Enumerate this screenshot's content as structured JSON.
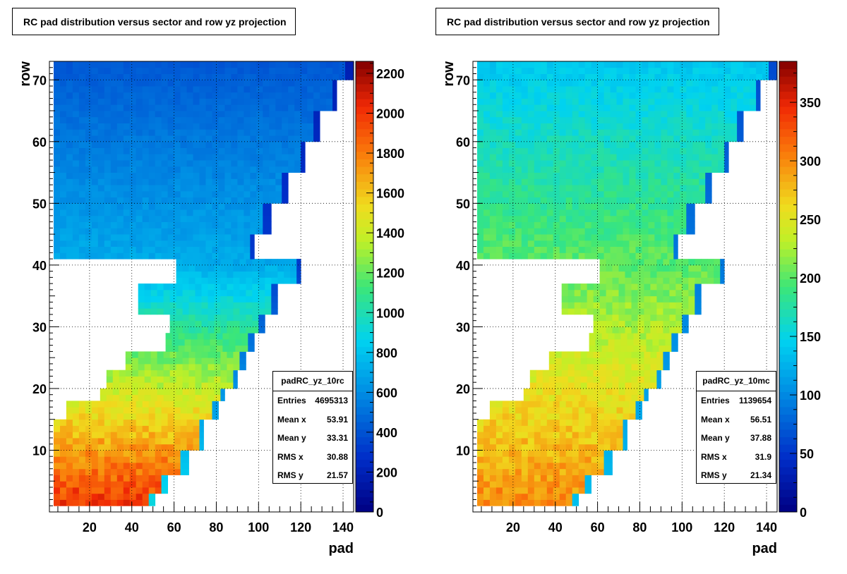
{
  "chart_data": [
    {
      "type": "heatmap",
      "title": "RC pad distribution versus sector and row yz projection",
      "xlabel": "pad",
      "ylabel": "row",
      "xlim": [
        1,
        145
      ],
      "ylim": [
        0,
        73
      ],
      "xticks": [
        20,
        40,
        60,
        80,
        100,
        120,
        140
      ],
      "yticks": [
        10,
        20,
        30,
        40,
        50,
        60,
        70
      ],
      "zlim": [
        0,
        2260
      ],
      "zticks": [
        0,
        200,
        400,
        600,
        800,
        1000,
        1200,
        1400,
        1600,
        1800,
        2000,
        2200
      ],
      "grid": true,
      "palette": "rainbow",
      "intensity": {
        "bottom_row": 2000,
        "top_row": 500,
        "upper_block_top": 420,
        "upper_block_bottom": 700
      },
      "rows": [
        {
          "row_from": 1,
          "row_to": 2,
          "pad_from": 3,
          "pad_to": 50
        },
        {
          "row_from": 3,
          "row_to": 5,
          "pad_from": 3,
          "pad_to": 56
        },
        {
          "row_from": 6,
          "row_to": 9,
          "pad_from": 3,
          "pad_to": 66
        },
        {
          "row_from": 10,
          "row_to": 14,
          "pad_from": 3,
          "pad_to": 73
        },
        {
          "row_from": 15,
          "row_to": 17,
          "pad_from": 9,
          "pad_to": 80
        },
        {
          "row_from": 18,
          "row_to": 19,
          "pad_from": 25,
          "pad_to": 83
        },
        {
          "row_from": 20,
          "row_to": 22,
          "pad_from": 28,
          "pad_to": 89
        },
        {
          "row_from": 23,
          "row_to": 25,
          "pad_from": 37,
          "pad_to": 93
        },
        {
          "row_from": 26,
          "row_to": 28,
          "pad_from": 56,
          "pad_to": 97
        },
        {
          "row_from": 29,
          "row_to": 31,
          "pad_from": 58,
          "pad_to": 102
        },
        {
          "row_from": 32,
          "row_to": 36,
          "pad_from": 43,
          "pad_to": 108
        },
        {
          "row_from": 37,
          "row_to": 40,
          "pad_from": 61,
          "pad_to": 119
        },
        {
          "row_from": 41,
          "row_to": 44,
          "pad_from": 3,
          "pad_to": 97
        },
        {
          "row_from": 45,
          "row_to": 49,
          "pad_from": 3,
          "pad_to": 105
        },
        {
          "row_from": 50,
          "row_to": 54,
          "pad_from": 3,
          "pad_to": 113
        },
        {
          "row_from": 55,
          "row_to": 59,
          "pad_from": 3,
          "pad_to": 121
        },
        {
          "row_from": 60,
          "row_to": 64,
          "pad_from": 3,
          "pad_to": 128
        },
        {
          "row_from": 65,
          "row_to": 69,
          "pad_from": 3,
          "pad_to": 136
        },
        {
          "row_from": 70,
          "row_to": 72,
          "pad_from": 3,
          "pad_to": 144
        }
      ],
      "stats": {
        "name": "padRC_yz_10rc",
        "entries_label": "Entries",
        "entries": "4695313",
        "mean_x_label": "Mean x",
        "mean_x": "53.91",
        "mean_y_label": "Mean y",
        "mean_y": "33.31",
        "rms_x_label": "RMS x",
        "rms_x": "30.88",
        "rms_y_label": "RMS y",
        "rms_y": "21.57"
      }
    },
    {
      "type": "heatmap",
      "title": "RC pad distribution versus sector and row yz projection",
      "xlabel": "pad",
      "ylabel": "row",
      "xlim": [
        1,
        145
      ],
      "ylim": [
        0,
        73
      ],
      "xticks": [
        20,
        40,
        60,
        80,
        100,
        120,
        140
      ],
      "yticks": [
        10,
        20,
        30,
        40,
        50,
        60,
        70
      ],
      "zlim": [
        0,
        385
      ],
      "zticks": [
        0,
        50,
        100,
        150,
        200,
        250,
        300,
        350
      ],
      "grid": true,
      "palette": "rainbow",
      "intensity": {
        "bottom_row": 300,
        "top_row": 150,
        "upper_block_top": 140,
        "upper_block_bottom": 200
      },
      "rows": [
        {
          "row_from": 1,
          "row_to": 2,
          "pad_from": 3,
          "pad_to": 50
        },
        {
          "row_from": 3,
          "row_to": 5,
          "pad_from": 3,
          "pad_to": 56
        },
        {
          "row_from": 6,
          "row_to": 9,
          "pad_from": 3,
          "pad_to": 66
        },
        {
          "row_from": 10,
          "row_to": 14,
          "pad_from": 3,
          "pad_to": 73
        },
        {
          "row_from": 15,
          "row_to": 17,
          "pad_from": 9,
          "pad_to": 80
        },
        {
          "row_from": 18,
          "row_to": 19,
          "pad_from": 25,
          "pad_to": 83
        },
        {
          "row_from": 20,
          "row_to": 22,
          "pad_from": 28,
          "pad_to": 89
        },
        {
          "row_from": 23,
          "row_to": 25,
          "pad_from": 37,
          "pad_to": 93
        },
        {
          "row_from": 26,
          "row_to": 28,
          "pad_from": 56,
          "pad_to": 97
        },
        {
          "row_from": 29,
          "row_to": 31,
          "pad_from": 58,
          "pad_to": 102
        },
        {
          "row_from": 32,
          "row_to": 36,
          "pad_from": 43,
          "pad_to": 108
        },
        {
          "row_from": 37,
          "row_to": 40,
          "pad_from": 61,
          "pad_to": 119
        },
        {
          "row_from": 41,
          "row_to": 44,
          "pad_from": 3,
          "pad_to": 97
        },
        {
          "row_from": 45,
          "row_to": 49,
          "pad_from": 3,
          "pad_to": 105
        },
        {
          "row_from": 50,
          "row_to": 54,
          "pad_from": 3,
          "pad_to": 113
        },
        {
          "row_from": 55,
          "row_to": 59,
          "pad_from": 3,
          "pad_to": 121
        },
        {
          "row_from": 60,
          "row_to": 64,
          "pad_from": 3,
          "pad_to": 128
        },
        {
          "row_from": 65,
          "row_to": 69,
          "pad_from": 3,
          "pad_to": 136
        },
        {
          "row_from": 70,
          "row_to": 72,
          "pad_from": 3,
          "pad_to": 144
        }
      ],
      "stats": {
        "name": "padRC_yz_10mc",
        "entries_label": "Entries",
        "entries": "1139654",
        "mean_x_label": "Mean x",
        "mean_x": "56.51",
        "mean_y_label": "Mean y",
        "mean_y": "37.88",
        "rms_x_label": "RMS x",
        "rms_x": "31.9",
        "rms_y_label": "RMS y",
        "rms_y": "21.34"
      }
    }
  ]
}
